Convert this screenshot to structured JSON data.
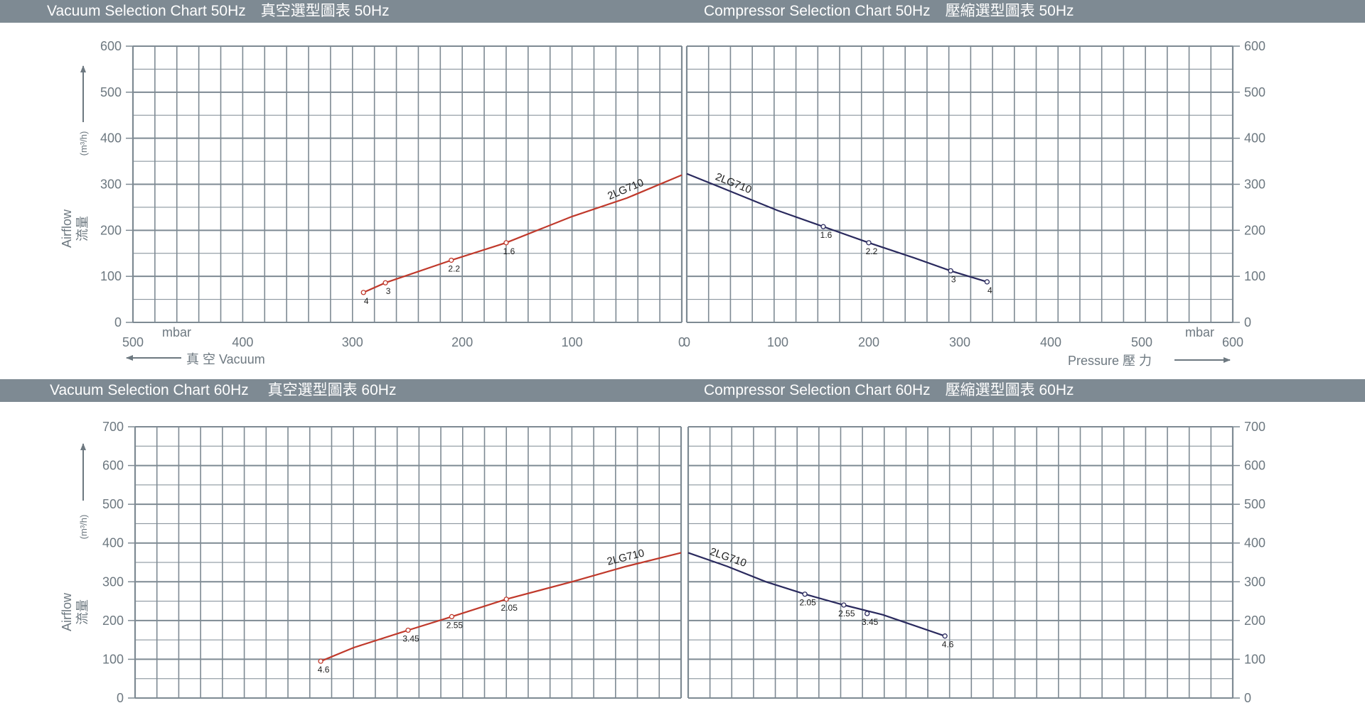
{
  "headers": {
    "top_left": "Vacuum Selection Chart 50Hz　真空選型圖表 50Hz",
    "top_right": "Compressor Selection Chart 50Hz　壓縮選型圖表 50Hz",
    "bottom_left": "Vacuum Selection Chart 60Hz　 真空選型圖表 60Hz",
    "bottom_right": "Compressor Selection Chart 60Hz　壓縮選型圖表 60Hz"
  },
  "axis_text": {
    "airflow_en": "Airflow",
    "airflow_zh": "流量",
    "airflow_unit": "(m³/h)",
    "unit_left": "mbar",
    "unit_right": "mbar",
    "vacuum_label": "真 空 Vacuum",
    "pressure_label": "Pressure 壓 力"
  },
  "colors": {
    "grid": "#7e8a93",
    "vacuum_curve": "#c0392b",
    "pressure_curve": "#2a2a5e",
    "header_bg": "#7e8a93"
  },
  "chart_data": [
    {
      "type": "line",
      "title": "Vacuum Selection Chart 50Hz 真空選型圖表 50Hz",
      "xlabel": "真 空 Vacuum (mbar)",
      "ylabel": "Airflow 流量 (m³/h)",
      "xlim": [
        500,
        0
      ],
      "ylim": [
        0,
        600
      ],
      "xticks": [
        500,
        400,
        300,
        200,
        100,
        0
      ],
      "yticks": [
        0,
        100,
        200,
        300,
        400,
        500,
        600
      ],
      "grid": true,
      "series": [
        {
          "name": "2LG710",
          "x": [
            290,
            270,
            210,
            160,
            100,
            50,
            0
          ],
          "y": [
            65,
            86,
            135,
            173,
            230,
            270,
            320
          ],
          "point_labels": [
            {
              "x": 290,
              "y": 65,
              "label": "4"
            },
            {
              "x": 270,
              "y": 86,
              "label": "3"
            },
            {
              "x": 210,
              "y": 135,
              "label": "2.2"
            },
            {
              "x": 160,
              "y": 173,
              "label": "1.6"
            }
          ]
        }
      ]
    },
    {
      "type": "line",
      "title": "Compressor Selection Chart 50Hz 壓縮選型圖表 50Hz",
      "xlabel": "Pressure 壓 力 (mbar)",
      "ylabel": "Airflow 流量 (m³/h)",
      "xlim": [
        0,
        600
      ],
      "ylim": [
        0,
        600
      ],
      "xticks": [
        0,
        100,
        200,
        300,
        400,
        500,
        600
      ],
      "yticks": [
        0,
        100,
        200,
        300,
        400,
        500,
        600
      ],
      "grid": true,
      "series": [
        {
          "name": "2LG710",
          "x": [
            0,
            50,
            100,
            150,
            200,
            250,
            290,
            330
          ],
          "y": [
            323,
            283,
            243,
            208,
            173,
            140,
            112,
            88
          ],
          "point_labels": [
            {
              "x": 150,
              "y": 208,
              "label": "1.6"
            },
            {
              "x": 200,
              "y": 173,
              "label": "2.2"
            },
            {
              "x": 290,
              "y": 112,
              "label": "3"
            },
            {
              "x": 330,
              "y": 88,
              "label": "4"
            }
          ]
        }
      ]
    },
    {
      "type": "line",
      "title": "Vacuum Selection Chart 60Hz 真空選型圖表 60Hz",
      "xlabel": "",
      "ylabel": "Airflow 流量 (m³/h)",
      "xlim": [
        500,
        0
      ],
      "ylim": [
        0,
        700
      ],
      "yticks": [
        0,
        100,
        200,
        300,
        400,
        500,
        600,
        700
      ],
      "grid": true,
      "series": [
        {
          "name": "2LG710",
          "x": [
            330,
            300,
            250,
            210,
            160,
            100,
            50,
            0
          ],
          "y": [
            95,
            130,
            175,
            210,
            255,
            300,
            340,
            375
          ],
          "point_labels": [
            {
              "x": 330,
              "y": 95,
              "label": "4.6"
            },
            {
              "x": 250,
              "y": 175,
              "label": "3.45"
            },
            {
              "x": 210,
              "y": 210,
              "label": "2.55"
            },
            {
              "x": 160,
              "y": 255,
              "label": "2.05"
            }
          ]
        }
      ]
    },
    {
      "type": "line",
      "title": "Compressor Selection Chart 60Hz 壓縮選型圖表 60Hz",
      "xlabel": "",
      "ylabel": "Airflow 流量 (m³/h)",
      "xlim": [
        0,
        700
      ],
      "ylim": [
        0,
        700
      ],
      "yticks": [
        0,
        100,
        200,
        300,
        400,
        500,
        600,
        700
      ],
      "grid": true,
      "series": [
        {
          "name": "2LG710",
          "x": [
            0,
            50,
            100,
            150,
            200,
            250,
            330
          ],
          "y": [
            375,
            340,
            300,
            268,
            240,
            215,
            160
          ],
          "point_labels": [
            {
              "x": 150,
              "y": 268,
              "label": "2.05"
            },
            {
              "x": 200,
              "y": 240,
              "label": "2.55"
            },
            {
              "x": 230,
              "y": 218,
              "label": "3.45"
            },
            {
              "x": 330,
              "y": 160,
              "label": "4.6"
            }
          ]
        }
      ]
    }
  ]
}
